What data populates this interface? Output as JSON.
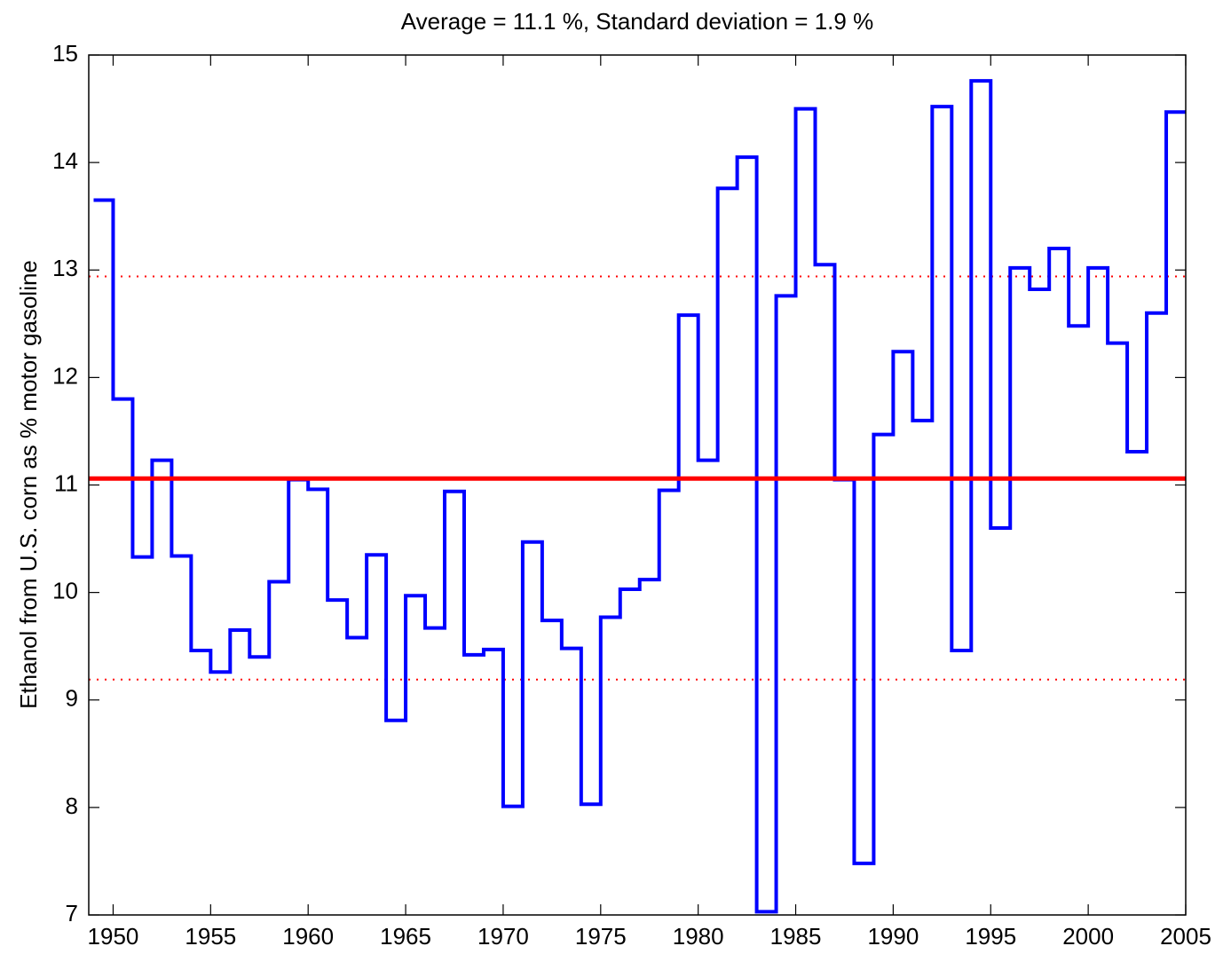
{
  "chart_data": {
    "type": "stairs",
    "title": "Average = 11.1 %, Standard deviation = 1.9 %",
    "ylabel": "Ethanol from U.S. corn as % motor gasoline",
    "x": [
      1949,
      1950,
      1951,
      1952,
      1953,
      1954,
      1955,
      1956,
      1957,
      1958,
      1959,
      1960,
      1961,
      1962,
      1963,
      1964,
      1965,
      1966,
      1967,
      1968,
      1969,
      1970,
      1971,
      1972,
      1973,
      1974,
      1975,
      1976,
      1977,
      1978,
      1979,
      1980,
      1981,
      1982,
      1983,
      1984,
      1985,
      1986,
      1987,
      1988,
      1989,
      1990,
      1991,
      1992,
      1993,
      1994,
      1995,
      1996,
      1997,
      1998,
      1999,
      2000,
      2001,
      2002,
      2003,
      2004
    ],
    "series": [
      {
        "color": "#0000ff",
        "values": [
          13.65,
          11.8,
          10.33,
          11.23,
          10.34,
          9.46,
          9.26,
          9.65,
          9.4,
          10.1,
          11.05,
          10.96,
          9.93,
          9.58,
          10.35,
          8.81,
          9.97,
          9.67,
          10.94,
          9.42,
          9.47,
          8.01,
          10.47,
          9.74,
          9.48,
          8.03,
          9.77,
          10.03,
          10.12,
          10.95,
          12.58,
          11.23,
          13.76,
          14.05,
          7.03,
          12.76,
          14.5,
          13.05,
          11.05,
          7.48,
          11.47,
          12.24,
          11.6,
          14.52,
          9.46,
          14.76,
          10.6,
          13.02,
          12.82,
          13.2,
          12.48,
          13.02,
          12.32,
          11.31,
          12.6,
          14.47
        ]
      }
    ],
    "mean_line": {
      "value": 11.06,
      "color": "#ff0000"
    },
    "std_lines": {
      "values": [
        12.94,
        9.19
      ],
      "color": "#ff0000"
    },
    "xlim": [
      1948.75,
      2005
    ],
    "xticks": [
      1950,
      1955,
      1960,
      1965,
      1970,
      1975,
      1980,
      1985,
      1990,
      1995,
      2000,
      2005
    ],
    "ylim": [
      7,
      15
    ],
    "yticks": [
      7,
      8,
      9,
      10,
      11,
      12,
      13,
      14,
      15
    ]
  }
}
